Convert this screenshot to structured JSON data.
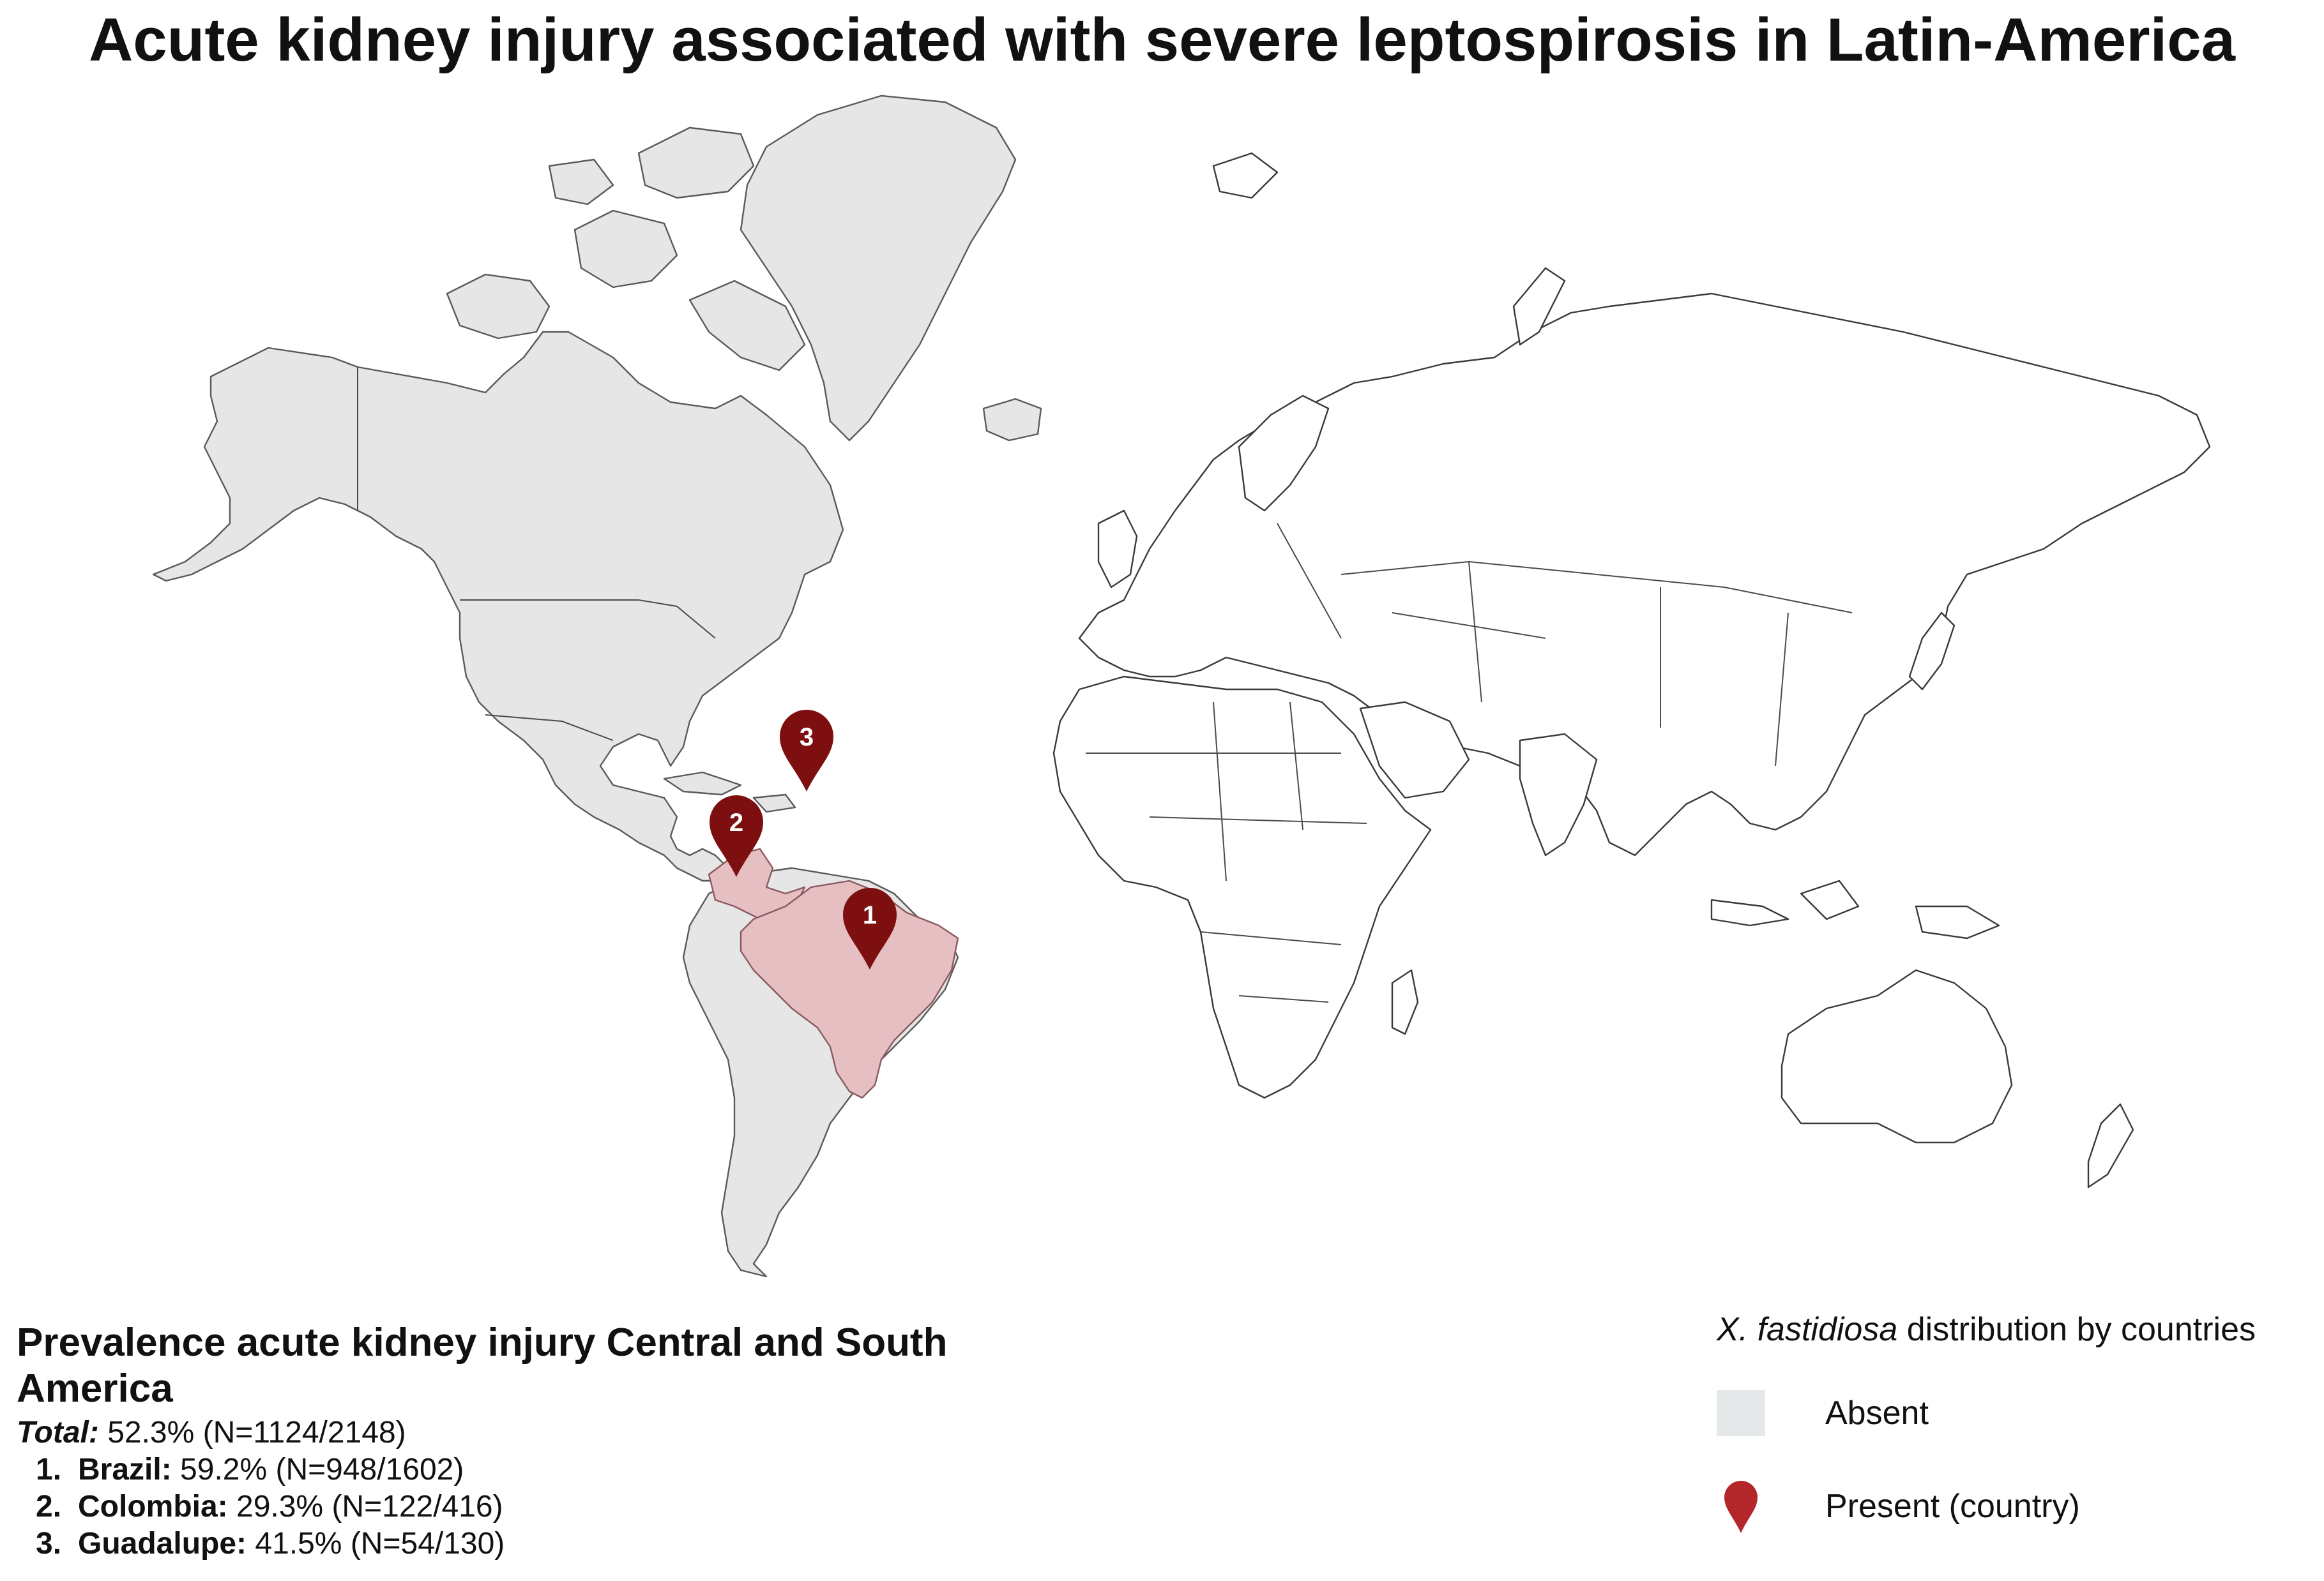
{
  "title": "Acute kidney injury associated with severe leptospirosis in Latin-America",
  "markers": [
    {
      "number": "1",
      "country": "Brazil"
    },
    {
      "number": "2",
      "country": "Colombia"
    },
    {
      "number": "3",
      "country": "Guadalupe"
    }
  ],
  "prevalence": {
    "heading": "Prevalence acute kidney injury Central and South America",
    "total_label": "Total:",
    "total_value": "52.3% (N=1124/2148)",
    "items": [
      {
        "num": "1.",
        "country": "Brazil:",
        "value": "59.2% (N=948/1602)"
      },
      {
        "num": "2.",
        "country": "Colombia:",
        "value": "29.3% (N=122/416)"
      },
      {
        "num": "3.",
        "country": "Guadalupe:",
        "value": "41.5% (N=54/130)"
      }
    ]
  },
  "legend": {
    "title_species": "X. fastidiosa",
    "title_rest": " distribution by countries",
    "absent_label": "Absent",
    "present_label": "Present (country)"
  },
  "colors": {
    "absent_fill": "#e6e6e6",
    "present_fill": "#e6bfc2",
    "marker": "#7d0f10",
    "legend_marker": "#b3262a"
  }
}
